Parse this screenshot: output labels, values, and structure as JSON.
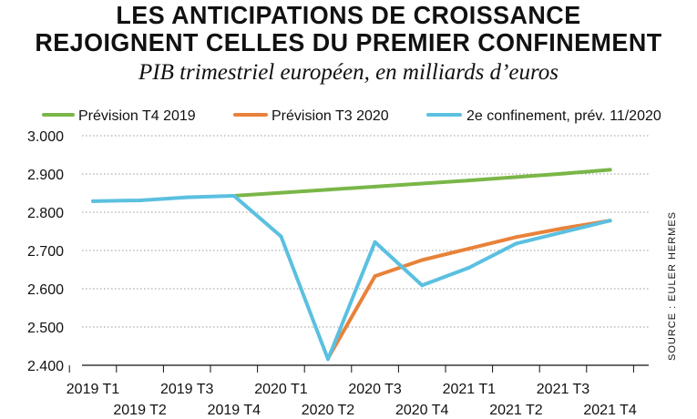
{
  "title_line1": "LES ANTICIPATIONS DE CROISSANCE",
  "title_line2": "REJOIGNENT CELLES DU PREMIER CONFINEMENT",
  "subtitle": "PIB trimestriel européen, en milliards d’euros",
  "source": "SOURCE : EULER HERMES",
  "chart_data": {
    "type": "line",
    "categories": [
      "2019 T1",
      "2019 T2",
      "2019 T3",
      "2019 T4",
      "2020 T1",
      "2020 T2",
      "2020 T3",
      "2020 T4",
      "2021 T1",
      "2021 T2",
      "2021 T3",
      "2021 T4"
    ],
    "ylim": [
      2400,
      3000
    ],
    "yticks": [
      2400,
      2500,
      2600,
      2700,
      2800,
      2900,
      3000
    ],
    "ytick_labels": [
      "2.400",
      "2.500",
      "2.600",
      "2.700",
      "2.800",
      "2.900",
      "3.000"
    ],
    "grid": "horizontal-dotted",
    "legend_position": "top",
    "series": [
      {
        "name": "Prévision T4 2019",
        "color": "#7ab648",
        "values": [
          null,
          null,
          null,
          2843,
          2851,
          2859,
          2867,
          2875,
          2883,
          2892,
          2901,
          2911
        ]
      },
      {
        "name": "Prévision T3 2020",
        "color": "#e8823a",
        "values": [
          null,
          null,
          null,
          null,
          null,
          2418,
          2633,
          2675,
          2705,
          2735,
          2758,
          2778
        ]
      },
      {
        "name": "2e confinement, prév. 11/2020",
        "color": "#5bc0e0",
        "values": [
          2829,
          2831,
          2839,
          2843,
          2737,
          2416,
          2722,
          2609,
          2655,
          2718,
          2748,
          2778
        ]
      }
    ]
  }
}
